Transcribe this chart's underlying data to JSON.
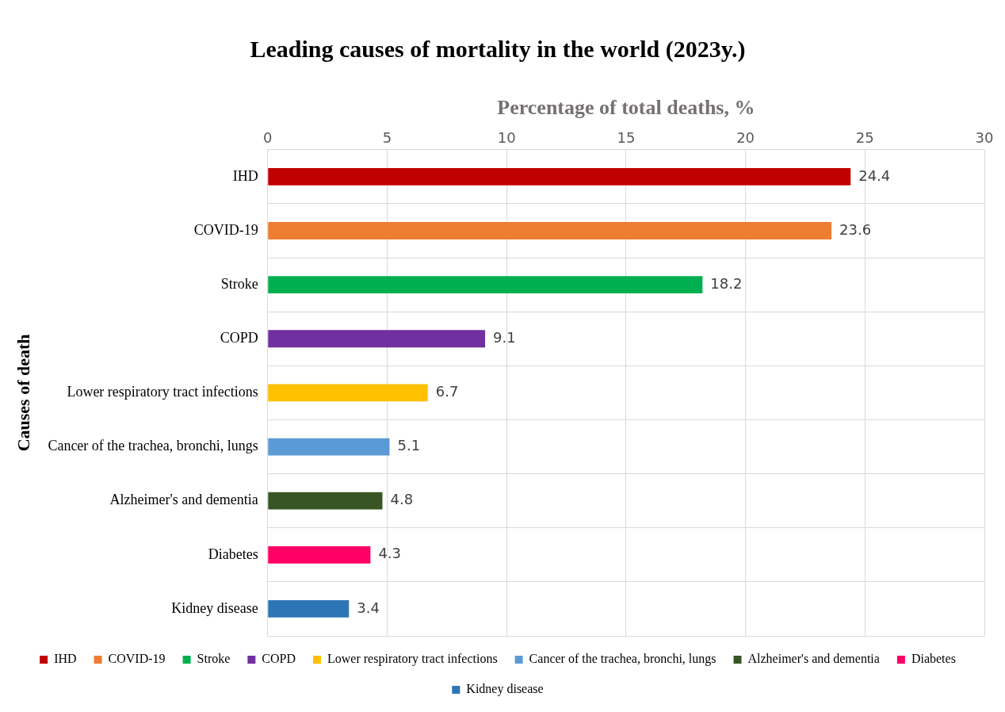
{
  "chart_data": {
    "type": "bar",
    "orientation": "horizontal",
    "stacked": true,
    "title": "Leading causes of mortality in the world (2023y.)",
    "xlabel": "Percentage of total deaths, %",
    "ylabel": "Causes of death",
    "categories": [
      "IHD",
      "COVID-19",
      "Stroke",
      "COPD",
      "Lower respiratory tract infections",
      "Cancer of the trachea, bronchi, lungs",
      "Alzheimer's and dementia",
      "Diabetes",
      "Kidney disease"
    ],
    "series": [
      {
        "name": "IHD",
        "color": "#c00000",
        "values": [
          24.4,
          null,
          null,
          null,
          null,
          null,
          null,
          null,
          null
        ]
      },
      {
        "name": "COVID-19",
        "color": "#ed7d31",
        "values": [
          null,
          23.6,
          null,
          null,
          null,
          null,
          null,
          null,
          null
        ]
      },
      {
        "name": "Stroke",
        "color": "#00b050",
        "values": [
          null,
          null,
          18.2,
          null,
          null,
          null,
          null,
          null,
          null
        ]
      },
      {
        "name": "COPD",
        "color": "#7030a0",
        "values": [
          null,
          null,
          null,
          9.1,
          null,
          null,
          null,
          null,
          null
        ]
      },
      {
        "name": "Lower respiratory tract infections",
        "color": "#ffc000",
        "values": [
          null,
          null,
          null,
          null,
          6.7,
          null,
          null,
          null,
          null
        ]
      },
      {
        "name": "Cancer of the trachea, bronchi, lungs",
        "color": "#5b9bd5",
        "values": [
          null,
          null,
          null,
          null,
          null,
          5.1,
          null,
          null,
          null
        ]
      },
      {
        "name": "Alzheimer's and dementia",
        "color": "#375623",
        "values": [
          null,
          null,
          null,
          null,
          null,
          null,
          4.8,
          null,
          null
        ]
      },
      {
        "name": "Diabetes",
        "color": "#ff0066",
        "values": [
          null,
          null,
          null,
          null,
          null,
          null,
          null,
          4.3,
          null
        ]
      },
      {
        "name": "Kidney disease",
        "color": "#2e75b6",
        "values": [
          null,
          null,
          null,
          null,
          null,
          null,
          null,
          null,
          3.4
        ]
      }
    ],
    "xlim": [
      0,
      30
    ],
    "xticks": [
      0,
      5,
      10,
      15,
      20,
      25,
      30
    ],
    "grid": true,
    "legend": "bottom",
    "data_labels": true
  }
}
